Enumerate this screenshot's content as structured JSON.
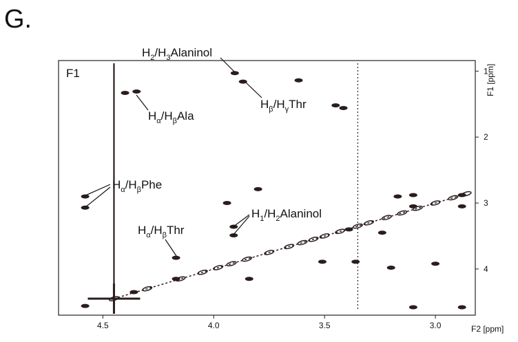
{
  "chart_data": {
    "type": "scatter",
    "panel_label": "G.",
    "inner_label": "F1",
    "x_label": "F2 [ppm]",
    "y_label": "F1 [ppm]",
    "xlim": [
      4.7,
      2.82
    ],
    "ylim": [
      0.84,
      4.7
    ],
    "xticks": [
      4.5,
      {
        "value": 4,
        "label": "4.0"
      },
      3.5,
      {
        "value": 3,
        "label": "3.0"
      }
    ],
    "yticks": [
      1,
      2,
      3,
      4
    ],
    "color": "#2b1d1d",
    "ridges": [
      4.45,
      3.35
    ],
    "peaks": {
      "x": [
        3.905,
        3.868,
        3.617,
        4.348,
        4.4,
        3.415,
        3.45,
        4.58,
        4.58,
        3.8,
        3.94,
        3.91,
        3.91,
        4.17,
        3.84,
        4.17,
        3.51,
        3.36,
        3.1,
        3.1,
        2.88,
        2.88,
        3.17,
        3.0,
        3.2,
        3.1,
        2.88,
        4.58,
        4.36,
        3.39,
        3.24
      ],
      "y": [
        1.03,
        1.16,
        1.14,
        1.31,
        1.33,
        1.56,
        1.52,
        2.9,
        3.07,
        2.79,
        3.0,
        3.36,
        3.49,
        3.83,
        4.15,
        4.15,
        3.89,
        3.89,
        2.88,
        3.05,
        2.88,
        3.05,
        2.9,
        3.92,
        3.98,
        4.58,
        4.58,
        4.56,
        4.35,
        3.4,
        3.45
      ]
    },
    "diagonal": {
      "x": [
        4.45,
        4.3,
        4.15,
        4.05,
        3.98,
        3.92,
        3.85,
        3.75,
        3.66,
        3.6,
        3.55,
        3.5,
        3.43,
        3.35,
        3.3,
        3.22,
        3.15,
        3.08,
        3.0,
        2.92,
        2.86
      ],
      "y": [
        4.45,
        4.3,
        4.15,
        4.05,
        3.98,
        3.92,
        3.85,
        3.75,
        3.66,
        3.6,
        3.55,
        3.5,
        3.43,
        3.35,
        3.3,
        3.22,
        3.15,
        3.08,
        3.0,
        2.92,
        2.86
      ]
    },
    "annotations": [
      [
        "H",
        "2",
        "/H",
        "3",
        "Alaninol"
      ],
      [
        "H",
        "β",
        "/H",
        "γ",
        "Thr"
      ],
      [
        "H",
        "α",
        "/H",
        "β",
        "Ala"
      ],
      [
        "H",
        "α",
        "/H",
        "β",
        "Phe"
      ],
      [
        "H",
        "1",
        "/H",
        "2",
        "Alaninol"
      ],
      [
        "H",
        "α",
        "/H",
        "β",
        "Thr"
      ]
    ]
  }
}
